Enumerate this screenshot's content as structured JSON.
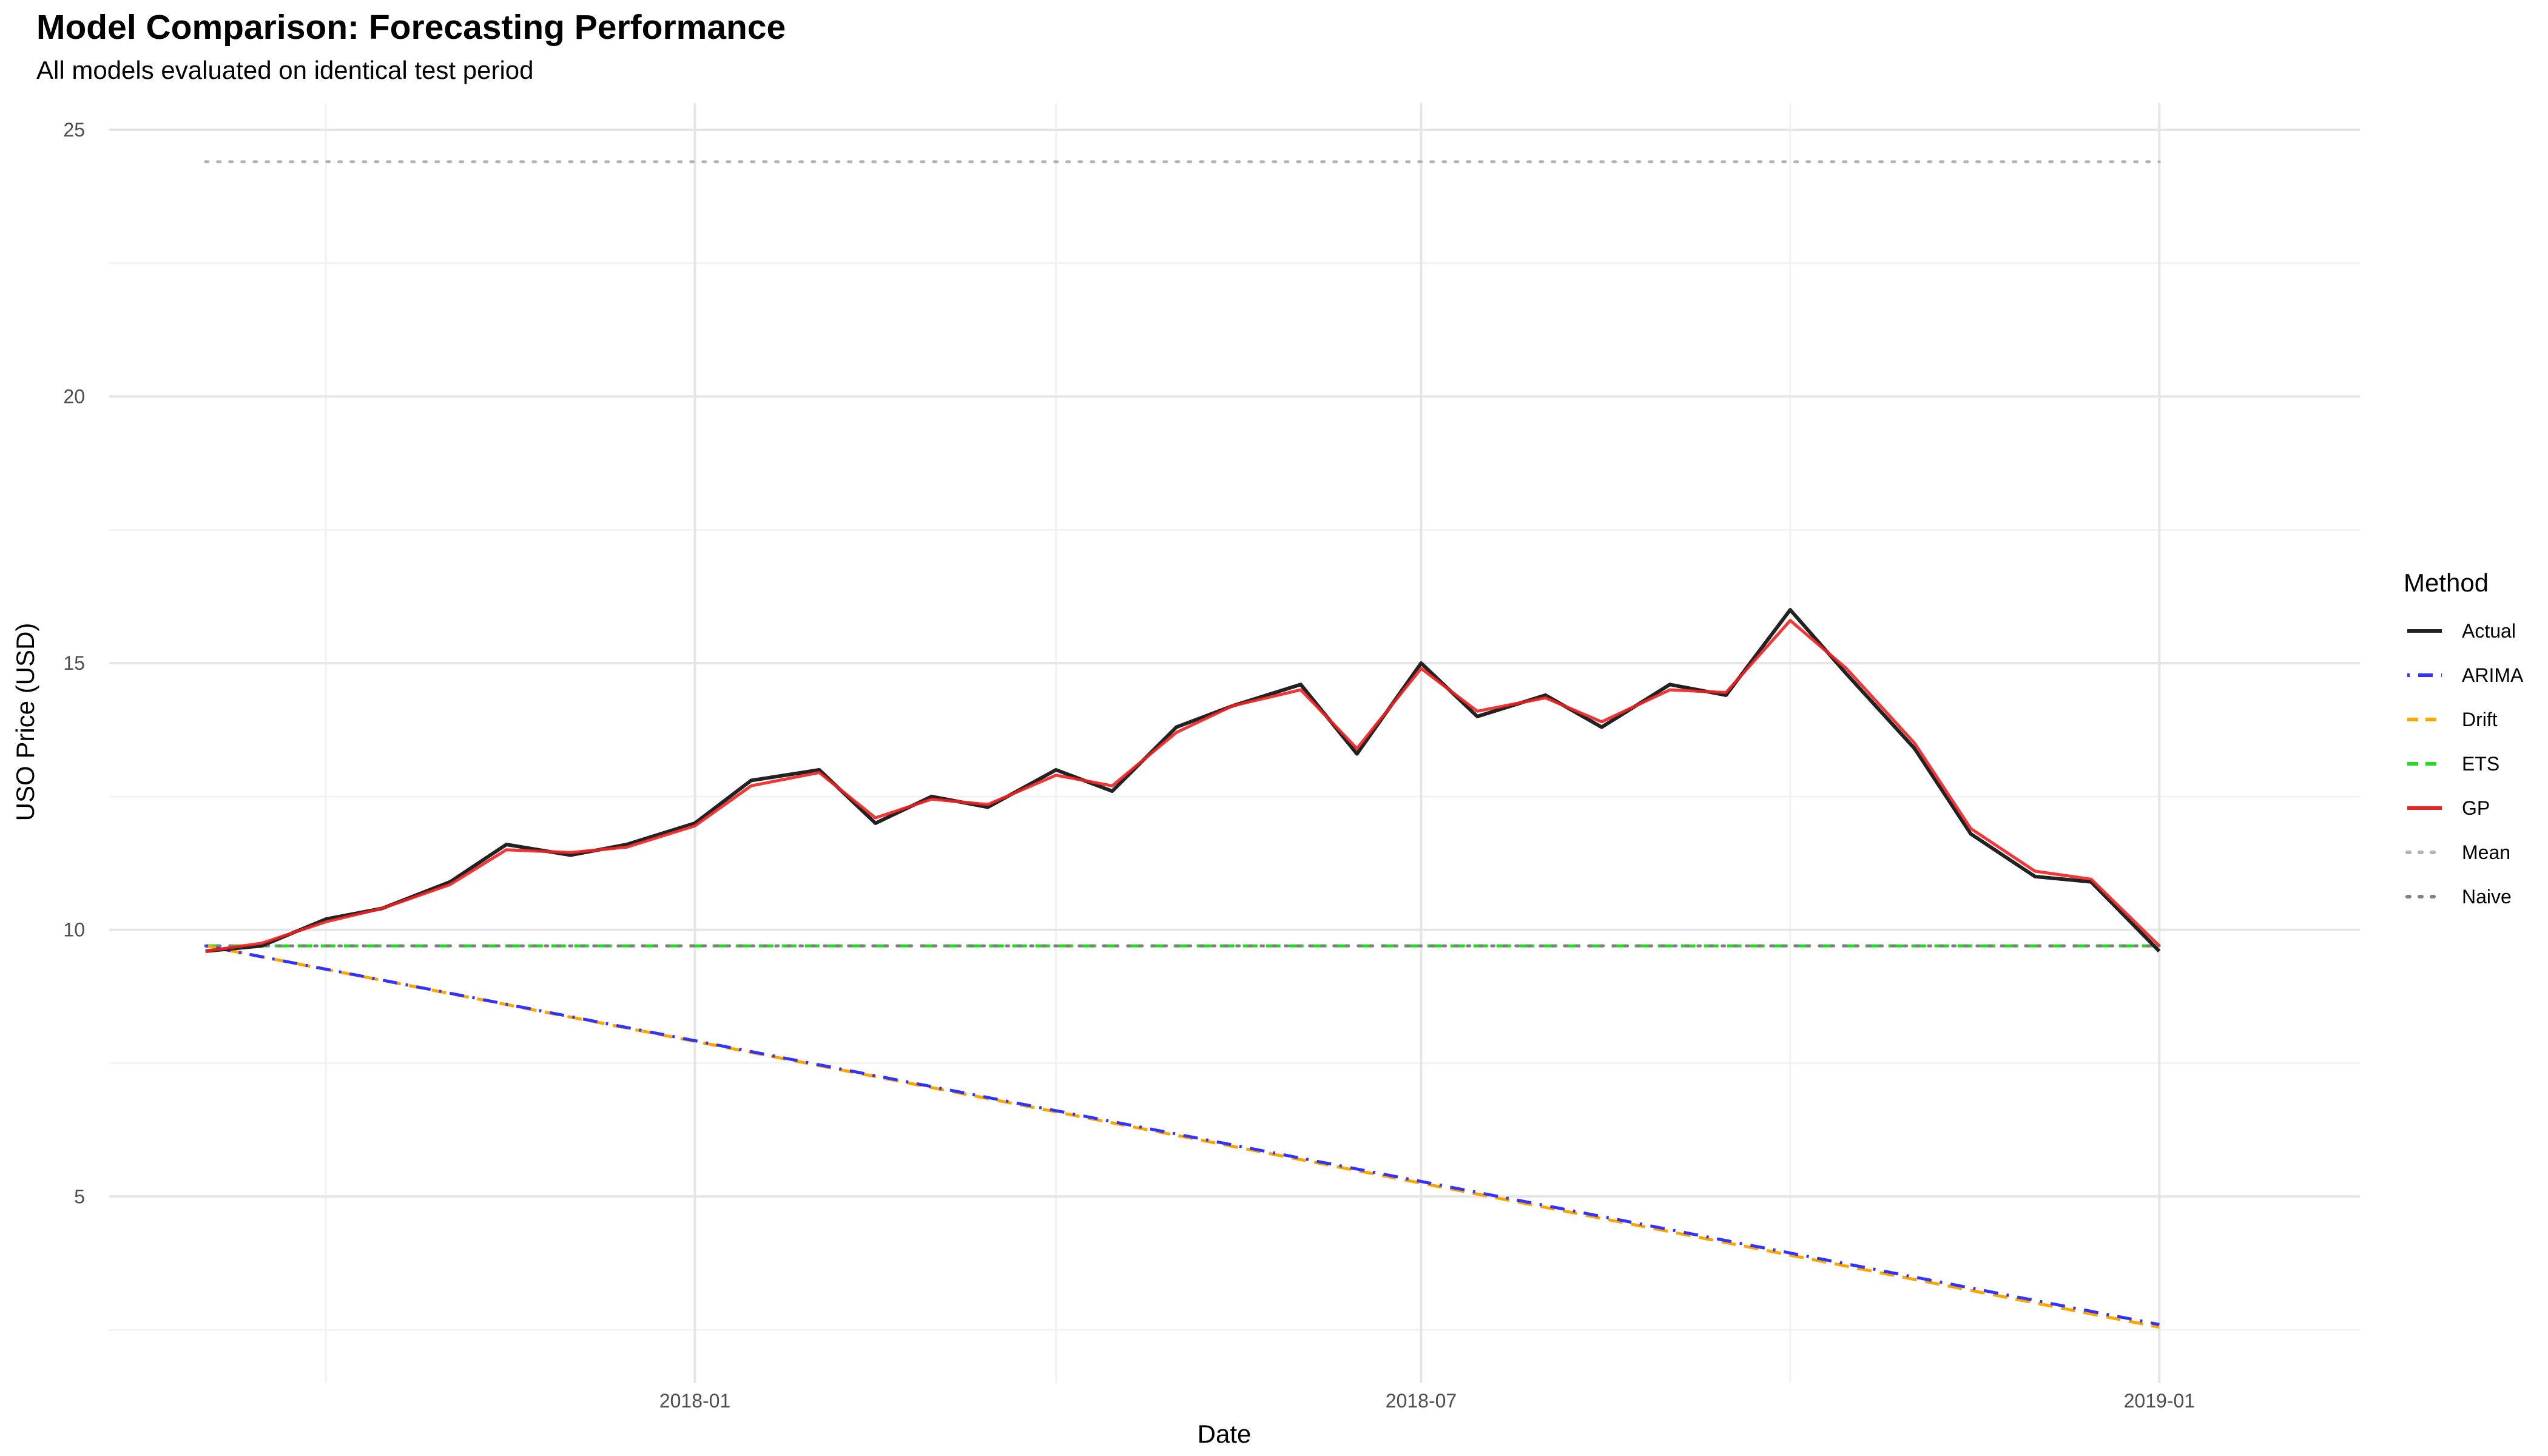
{
  "chart_data": {
    "type": "line",
    "title": "Model Comparison: Forecasting Performance",
    "subtitle": "All models evaluated on identical test period",
    "xlabel": "Date",
    "ylabel": "USO Price (USD)",
    "xlim": [
      "2017-08-08",
      "2019-02-20"
    ],
    "ylim": [
      1.5,
      25.5
    ],
    "x_ticks": [
      {
        "date": "2018-01-01",
        "label": "2018-01"
      },
      {
        "date": "2018-07-01",
        "label": "2018-07"
      },
      {
        "date": "2019-01-01",
        "label": "2019-01"
      }
    ],
    "x_minor_grid": [
      "2017-10-01",
      "2018-04-01",
      "2018-10-01"
    ],
    "y_ticks": [
      5,
      10,
      15,
      20,
      25
    ],
    "y_minor_grid": [
      2.5,
      7.5,
      12.5,
      17.5,
      22.5
    ],
    "grid": true,
    "legend": {
      "title": "Method",
      "position": "right"
    },
    "series": [
      {
        "name": "Actual",
        "color": "#222222",
        "style": "solid",
        "x": [
          "2017-09-01",
          "2017-09-15",
          "2017-10-01",
          "2017-10-15",
          "2017-11-01",
          "2017-11-15",
          "2017-12-01",
          "2017-12-15",
          "2018-01-01",
          "2018-01-15",
          "2018-02-01",
          "2018-02-15",
          "2018-03-01",
          "2018-03-15",
          "2018-04-01",
          "2018-04-15",
          "2018-05-01",
          "2018-05-15",
          "2018-06-01",
          "2018-06-15",
          "2018-07-01",
          "2018-07-15",
          "2018-08-01",
          "2018-08-15",
          "2018-09-01",
          "2018-09-15",
          "2018-10-01",
          "2018-10-15",
          "2018-11-01",
          "2018-11-15",
          "2018-12-01",
          "2018-12-15",
          "2019-01-01"
        ],
        "y": [
          9.6,
          9.7,
          10.2,
          10.4,
          10.9,
          11.6,
          11.4,
          11.6,
          12.0,
          12.8,
          13.0,
          12.0,
          12.5,
          12.3,
          13.0,
          12.6,
          13.8,
          14.2,
          14.6,
          13.3,
          15.0,
          14.0,
          14.4,
          13.8,
          14.6,
          14.4,
          16.0,
          14.8,
          13.4,
          11.8,
          11.0,
          10.9,
          9.6
        ]
      },
      {
        "name": "ARIMA",
        "color": "#3333ff",
        "style": "dotdash",
        "x": [
          "2017-09-01",
          "2019-01-01"
        ],
        "y": [
          9.7,
          2.6
        ]
      },
      {
        "name": "Drift",
        "color": "#ffa500",
        "style": "dashed",
        "x": [
          "2017-09-01",
          "2019-01-01"
        ],
        "y": [
          9.7,
          2.55
        ]
      },
      {
        "name": "ETS",
        "color": "#22dd22",
        "style": "dashed",
        "x": [
          "2017-09-01",
          "2019-01-01"
        ],
        "y": [
          9.7,
          9.7
        ]
      },
      {
        "name": "GP",
        "color": "#ee2222",
        "style": "solid",
        "x": [
          "2017-09-01",
          "2017-09-15",
          "2017-10-01",
          "2017-10-15",
          "2017-11-01",
          "2017-11-15",
          "2017-12-01",
          "2017-12-15",
          "2018-01-01",
          "2018-01-15",
          "2018-02-01",
          "2018-02-15",
          "2018-03-01",
          "2018-03-15",
          "2018-04-01",
          "2018-04-15",
          "2018-05-01",
          "2018-05-15",
          "2018-06-01",
          "2018-06-15",
          "2018-07-01",
          "2018-07-15",
          "2018-08-01",
          "2018-08-15",
          "2018-09-01",
          "2018-09-15",
          "2018-10-01",
          "2018-10-15",
          "2018-11-01",
          "2018-11-15",
          "2018-12-01",
          "2018-12-15",
          "2019-01-01"
        ],
        "y": [
          9.6,
          9.75,
          10.15,
          10.4,
          10.85,
          11.5,
          11.45,
          11.55,
          11.95,
          12.7,
          12.95,
          12.1,
          12.45,
          12.35,
          12.9,
          12.7,
          13.7,
          14.2,
          14.5,
          13.4,
          14.9,
          14.1,
          14.35,
          13.9,
          14.5,
          14.45,
          15.8,
          14.9,
          13.5,
          11.9,
          11.1,
          10.95,
          9.7
        ]
      },
      {
        "name": "Mean",
        "color": "#b3b3b3",
        "style": "dotted",
        "x": [
          "2017-09-01",
          "2019-01-01"
        ],
        "y": [
          24.4,
          24.4
        ]
      },
      {
        "name": "Naive",
        "color": "#808080",
        "style": "dotted",
        "x": [
          "2017-09-01",
          "2019-01-01"
        ],
        "y": [
          9.7,
          9.7
        ]
      }
    ]
  }
}
